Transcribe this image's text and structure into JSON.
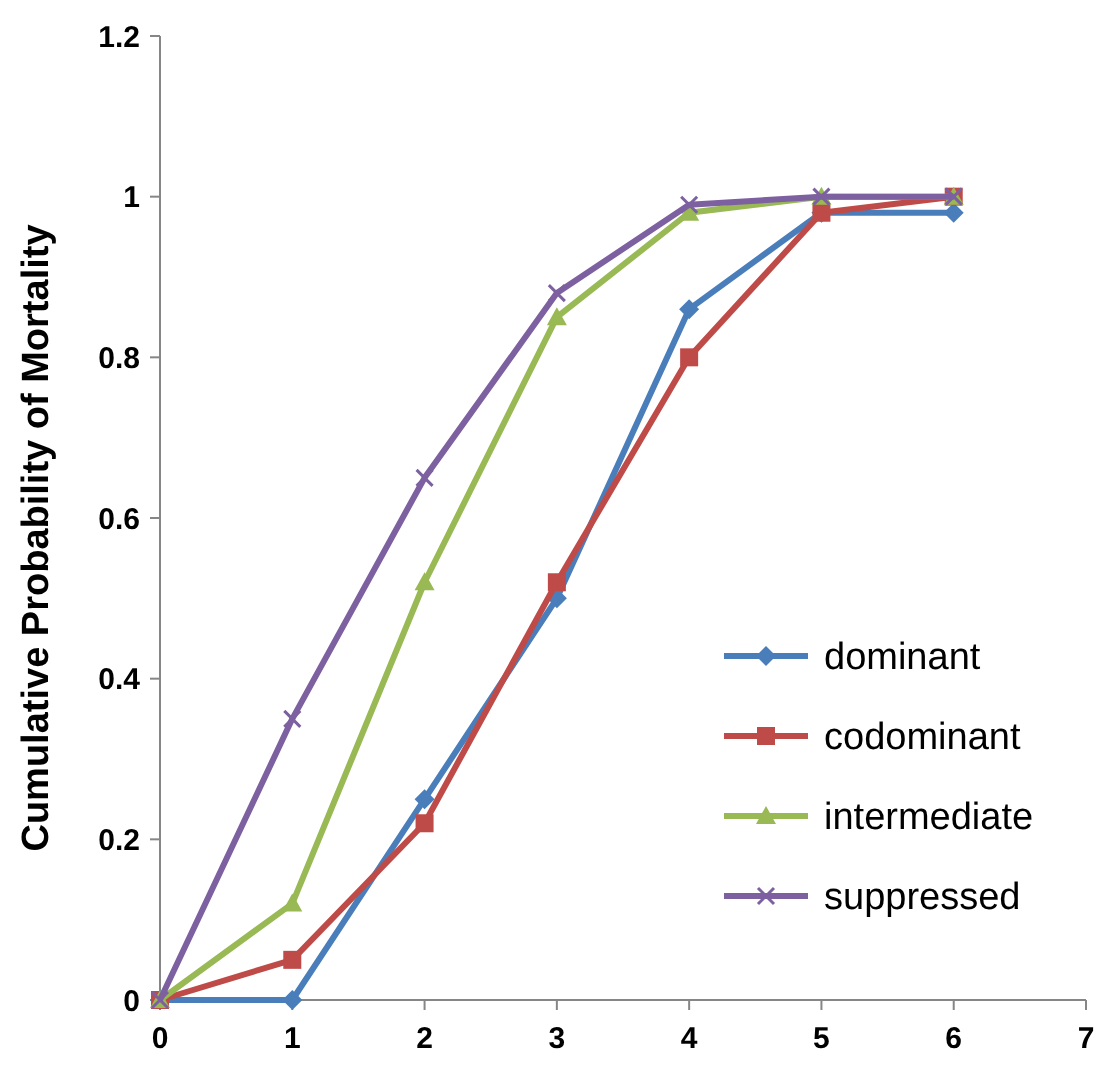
{
  "chart_data": {
    "type": "line",
    "ylabel": "Cumulative Probability  of Mortality",
    "x": [
      0,
      1,
      2,
      3,
      4,
      5,
      6
    ],
    "xlim": [
      0,
      7
    ],
    "xticks": [
      0,
      1,
      2,
      3,
      4,
      5,
      6,
      7
    ],
    "ylim": [
      0,
      1.2
    ],
    "yticks": [
      0,
      {
        "value": 0.2,
        "label": "0.2"
      },
      {
        "value": 0.4,
        "label": "0.4"
      },
      {
        "value": 0.6,
        "label": "0.6"
      },
      {
        "value": 0.8,
        "label": "0.8"
      },
      1,
      {
        "value": 1.2,
        "label": "1.2"
      }
    ],
    "grid": false,
    "legend": "bottom right",
    "line_style": "solid",
    "series": [
      {
        "name": "dominant",
        "color": "#4a7ebb",
        "marker": "diamond",
        "values": [
          0,
          0,
          0.25,
          0.5,
          0.86,
          0.98,
          0.98
        ]
      },
      {
        "name": "codominant",
        "color": "#be4b48",
        "marker": "square",
        "values": [
          0,
          0.05,
          0.22,
          0.52,
          0.8,
          0.98,
          1
        ]
      },
      {
        "name": "intermediate",
        "color": "#98b954",
        "marker": "triangle",
        "values": [
          0,
          0.12,
          0.52,
          0.85,
          0.98,
          1,
          1
        ]
      },
      {
        "name": "suppressed",
        "color": "#7d60a0",
        "marker": "cross",
        "values": [
          0,
          0.35,
          0.65,
          0.88,
          0.99,
          1,
          1
        ]
      }
    ]
  }
}
